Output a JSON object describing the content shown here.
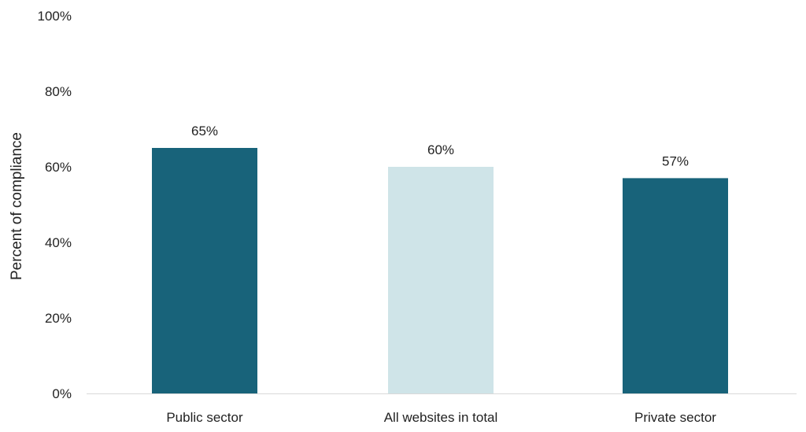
{
  "chart_data": {
    "type": "bar",
    "title": "",
    "xlabel": "",
    "ylabel": "Percent of compliance",
    "categories": [
      "Public sector",
      "All websites in total",
      "Private sector"
    ],
    "values": [
      65,
      60,
      57
    ],
    "data_labels": [
      "65%",
      "60%",
      "57%"
    ],
    "ylim": [
      0,
      100
    ],
    "yticks": [
      0,
      20,
      40,
      60,
      80,
      100
    ],
    "ytick_labels": [
      "0%",
      "20%",
      "40%",
      "60%",
      "80%",
      "100%"
    ],
    "grid": false,
    "legend": "none",
    "bar_colors": [
      "#18637a",
      "#cfe4e8",
      "#18637a"
    ],
    "axis_color": "#d9d9d9"
  }
}
